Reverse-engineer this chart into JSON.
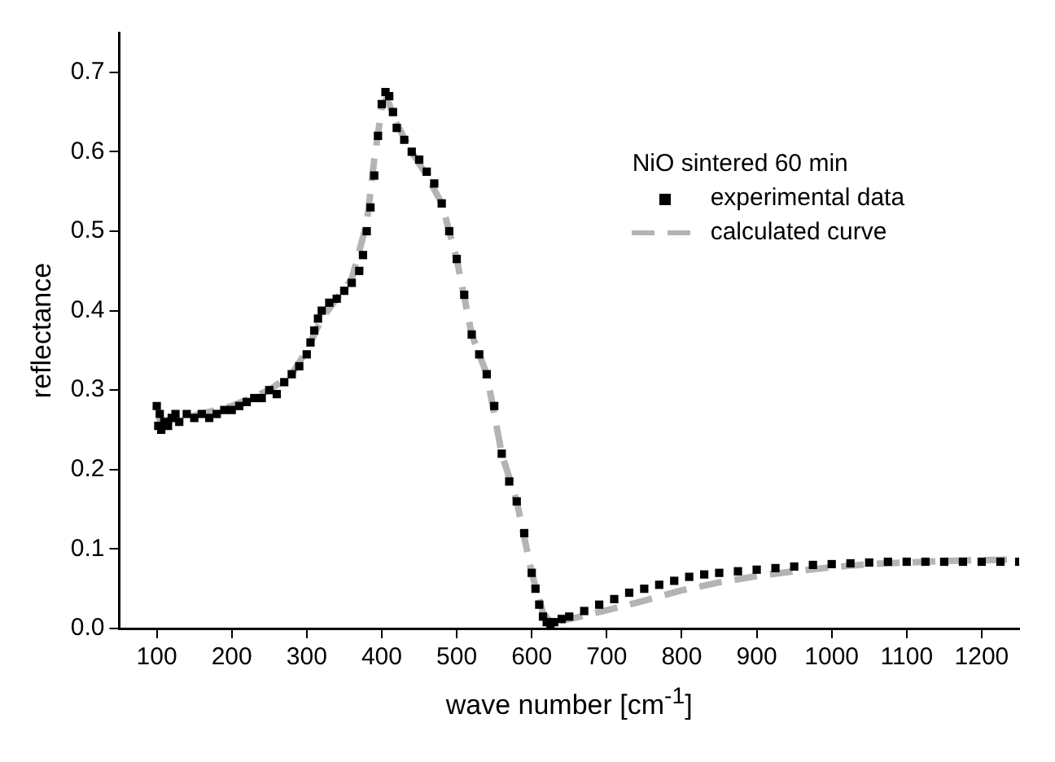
{
  "chart_data": {
    "type": "line",
    "xlabel": "wave number [cm$^{-1}$]",
    "ylabel": "reflectance",
    "legend_title": "NiO sintered 60 min",
    "legend": "top right",
    "grid": false,
    "xlim": [
      50,
      1250
    ],
    "xticks": [
      100,
      200,
      300,
      400,
      500,
      600,
      700,
      800,
      900,
      1000,
      1100,
      1200
    ],
    "ylim": [
      0,
      0.75
    ],
    "yticks": [
      {
        "value": 0,
        "label": "0.0"
      },
      {
        "value": 0.1,
        "label": "0.1"
      },
      {
        "value": 0.2,
        "label": "0.2"
      },
      {
        "value": 0.3,
        "label": "0.3"
      },
      {
        "value": 0.4,
        "label": "0.4"
      },
      {
        "value": 0.5,
        "label": "0.5"
      },
      {
        "value": 0.6,
        "label": "0.6"
      },
      {
        "value": 0.7,
        "label": "0.7"
      }
    ],
    "series": [
      {
        "name": "experimental data",
        "type": "scatter",
        "marker": "square",
        "color": "#000000",
        "x": [
          100,
          102,
          104,
          106,
          110,
          115,
          120,
          125,
          130,
          140,
          150,
          160,
          170,
          180,
          190,
          200,
          210,
          220,
          230,
          240,
          250,
          260,
          270,
          280,
          290,
          300,
          305,
          310,
          315,
          320,
          330,
          340,
          350,
          360,
          370,
          375,
          380,
          385,
          390,
          395,
          400,
          405,
          410,
          415,
          420,
          430,
          440,
          450,
          460,
          470,
          480,
          490,
          500,
          510,
          520,
          530,
          540,
          550,
          560,
          570,
          580,
          590,
          600,
          605,
          610,
          615,
          620,
          625,
          630,
          640,
          650,
          670,
          690,
          710,
          730,
          750,
          770,
          790,
          810,
          830,
          850,
          875,
          900,
          925,
          950,
          975,
          1000,
          1025,
          1050,
          1075,
          1100,
          1125,
          1150,
          1175,
          1200,
          1225,
          1250
        ],
        "values": [
          0.28,
          0.255,
          0.27,
          0.25,
          0.26,
          0.255,
          0.265,
          0.27,
          0.26,
          0.27,
          0.265,
          0.27,
          0.265,
          0.27,
          0.275,
          0.275,
          0.28,
          0.285,
          0.29,
          0.29,
          0.3,
          0.295,
          0.31,
          0.32,
          0.33,
          0.345,
          0.36,
          0.375,
          0.39,
          0.4,
          0.41,
          0.415,
          0.425,
          0.435,
          0.45,
          0.47,
          0.5,
          0.53,
          0.57,
          0.62,
          0.66,
          0.675,
          0.67,
          0.65,
          0.63,
          0.615,
          0.6,
          0.59,
          0.575,
          0.56,
          0.535,
          0.5,
          0.465,
          0.42,
          0.37,
          0.345,
          0.32,
          0.28,
          0.22,
          0.185,
          0.16,
          0.12,
          0.07,
          0.05,
          0.03,
          0.015,
          0.008,
          0.005,
          0.008,
          0.012,
          0.015,
          0.022,
          0.03,
          0.037,
          0.045,
          0.05,
          0.055,
          0.06,
          0.065,
          0.068,
          0.07,
          0.072,
          0.074,
          0.076,
          0.078,
          0.08,
          0.081,
          0.082,
          0.083,
          0.084,
          0.084,
          0.084,
          0.084,
          0.084,
          0.084,
          0.084,
          0.084
        ]
      },
      {
        "name": "calculated curve",
        "marker": "none",
        "line_style": "dashed",
        "color": "#b4b4b4",
        "x": [
          100,
          150,
          200,
          250,
          280,
          300,
          320,
          340,
          360,
          380,
          390,
          400,
          405,
          410,
          420,
          440,
          460,
          480,
          500,
          520,
          540,
          560,
          580,
          600,
          615,
          625,
          640,
          660,
          700,
          750,
          800,
          850,
          900,
          950,
          1000,
          1050,
          1100,
          1150,
          1200,
          1250
        ],
        "values": [
          0.26,
          0.268,
          0.28,
          0.3,
          0.32,
          0.35,
          0.39,
          0.415,
          0.44,
          0.51,
          0.59,
          0.655,
          0.665,
          0.66,
          0.635,
          0.6,
          0.57,
          0.535,
          0.465,
          0.37,
          0.32,
          0.22,
          0.16,
          0.07,
          0.02,
          0.008,
          0.01,
          0.014,
          0.023,
          0.035,
          0.048,
          0.058,
          0.066,
          0.072,
          0.077,
          0.081,
          0.083,
          0.085,
          0.086,
          0.087
        ]
      }
    ]
  }
}
